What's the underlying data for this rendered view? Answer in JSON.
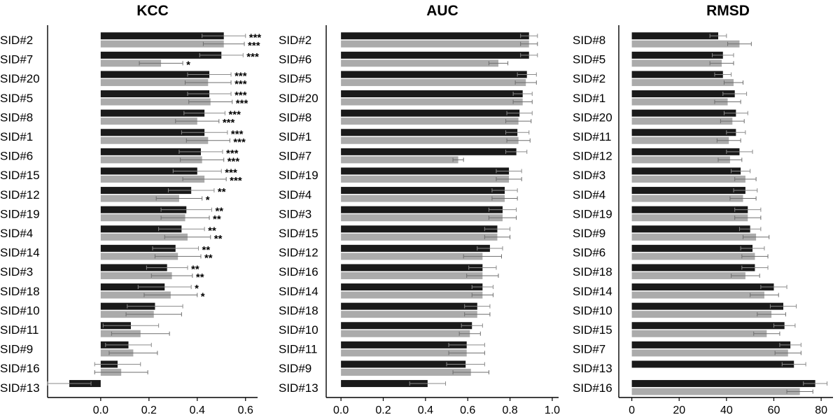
{
  "chart_data": [
    {
      "type": "bar",
      "orientation": "horizontal",
      "title": "KCC",
      "xlim": [
        -0.22,
        0.65
      ],
      "xticks": [
        "0.0",
        "0.2",
        "0.4",
        "0.6"
      ],
      "xtick_values": [
        0.0,
        0.2,
        0.4,
        0.6
      ],
      "categories": [
        "SID#2",
        "SID#7",
        "SID#20",
        "SID#5",
        "SID#8",
        "SID#1",
        "SID#6",
        "SID#15",
        "SID#12",
        "SID#19",
        "SID#4",
        "SID#14",
        "SID#3",
        "SID#18",
        "SID#10",
        "SID#11",
        "SID#9",
        "SID#16",
        "SID#13"
      ],
      "series": [
        {
          "color": "#1a1a1a",
          "values": [
            0.51,
            0.5,
            0.45,
            0.45,
            0.43,
            0.43,
            0.415,
            0.4,
            0.375,
            0.355,
            0.335,
            0.31,
            0.275,
            0.265,
            0.225,
            0.125,
            0.115,
            0.07,
            -0.13
          ],
          "errors": [
            0.09,
            0.09,
            0.09,
            0.09,
            0.085,
            0.095,
            0.09,
            0.1,
            0.095,
            0.105,
            0.095,
            0.095,
            0.085,
            0.11,
            0.115,
            0.115,
            0.095,
            0.095,
            0.09
          ],
          "significance": [
            "***",
            "***",
            "***",
            "***",
            "***",
            "***",
            "***",
            "***",
            "**",
            "**",
            "**",
            "**",
            "**",
            "*",
            "",
            "",
            "",
            "",
            ""
          ]
        },
        {
          "color": "#ababab",
          "values": [
            0.51,
            0.25,
            0.445,
            0.455,
            0.4,
            0.445,
            0.42,
            0.43,
            0.325,
            0.35,
            0.36,
            0.32,
            0.295,
            0.29,
            0.22,
            0.165,
            0.135,
            0.085,
            null
          ],
          "errors": [
            0.085,
            0.09,
            0.095,
            0.09,
            0.09,
            0.09,
            0.09,
            0.09,
            0.095,
            0.1,
            0.095,
            0.095,
            0.085,
            0.11,
            0.115,
            0.12,
            0.1,
            0.11,
            null
          ],
          "significance": [
            "***",
            "*",
            "***",
            "***",
            "***",
            "***",
            "***",
            "***",
            "*",
            "**",
            "**",
            "**",
            "**",
            "*",
            "",
            "",
            "",
            "",
            ""
          ]
        }
      ]
    },
    {
      "type": "bar",
      "orientation": "horizontal",
      "title": "AUC",
      "xlim": [
        -0.07,
        1.03
      ],
      "xticks": [
        "0.0",
        "0.2",
        "0.4",
        "0.6",
        "0.8",
        "1.0"
      ],
      "xtick_values": [
        0.0,
        0.2,
        0.4,
        0.6,
        0.8,
        1.0
      ],
      "categories": [
        "SID#2",
        "SID#6",
        "SID#5",
        "SID#20",
        "SID#8",
        "SID#1",
        "SID#7",
        "SID#19",
        "SID#4",
        "SID#3",
        "SID#15",
        "SID#12",
        "SID#16",
        "SID#14",
        "SID#18",
        "SID#10",
        "SID#11",
        "SID#9",
        "SID#13"
      ],
      "series": [
        {
          "color": "#1a1a1a",
          "values": [
            0.89,
            0.89,
            0.88,
            0.86,
            0.845,
            0.835,
            0.83,
            0.795,
            0.775,
            0.765,
            0.74,
            0.705,
            0.67,
            0.67,
            0.645,
            0.62,
            0.595,
            0.59,
            0.41
          ],
          "errors": [
            0.04,
            0.04,
            0.045,
            0.045,
            0.06,
            0.055,
            0.05,
            0.06,
            0.06,
            0.065,
            0.06,
            0.06,
            0.065,
            0.05,
            0.06,
            0.05,
            0.085,
            0.09,
            0.085
          ]
        },
        {
          "color": "#ababab",
          "values": [
            0.89,
            0.745,
            0.875,
            0.86,
            0.84,
            0.84,
            0.555,
            0.795,
            0.775,
            0.765,
            0.74,
            0.67,
            0.67,
            0.67,
            0.645,
            0.61,
            0.595,
            0.615,
            null
          ],
          "errors": [
            0.04,
            0.045,
            0.05,
            0.045,
            0.06,
            0.055,
            0.025,
            0.06,
            0.06,
            0.065,
            0.06,
            0.09,
            0.075,
            0.05,
            0.06,
            0.05,
            0.085,
            0.085,
            null
          ]
        }
      ]
    },
    {
      "type": "bar",
      "orientation": "horizontal",
      "title": "RMSD",
      "xlim": [
        -5.5,
        85
      ],
      "xticks": [
        "0",
        "20",
        "40",
        "60",
        "80"
      ],
      "xtick_values": [
        0,
        20,
        40,
        60,
        80
      ],
      "categories": [
        "SID#8",
        "SID#5",
        "SID#2",
        "SID#1",
        "SID#20",
        "SID#11",
        "SID#12",
        "SID#3",
        "SID#4",
        "SID#19",
        "SID#9",
        "SID#6",
        "SID#18",
        "SID#14",
        "SID#10",
        "SID#15",
        "SID#7",
        "SID#13",
        "SID#16"
      ],
      "series": [
        {
          "color": "#1a1a1a",
          "values": [
            36.5,
            38.5,
            38.5,
            43.5,
            44,
            44,
            45.5,
            46,
            48,
            49,
            50,
            51,
            52,
            60,
            64,
            64.5,
            67,
            68.5,
            77.5
          ],
          "errors": [
            3.5,
            4.5,
            3.5,
            5,
            5,
            4,
            5.5,
            4,
            5,
            5.5,
            4.5,
            5,
            5.5,
            5.5,
            5.5,
            4.5,
            4.5,
            5,
            5
          ]
        },
        {
          "color": "#ababab",
          "values": [
            45.5,
            38,
            43,
            40.5,
            42.5,
            41,
            41.5,
            48,
            47,
            49,
            52.5,
            52,
            48,
            56,
            59,
            57,
            66,
            null,
            71
          ],
          "errors": [
            5,
            5,
            4,
            5.5,
            5,
            5,
            5,
            4.5,
            5.5,
            5.5,
            5.5,
            5.5,
            6,
            6,
            6,
            5.5,
            5.5,
            null,
            5.5
          ]
        }
      ]
    }
  ]
}
